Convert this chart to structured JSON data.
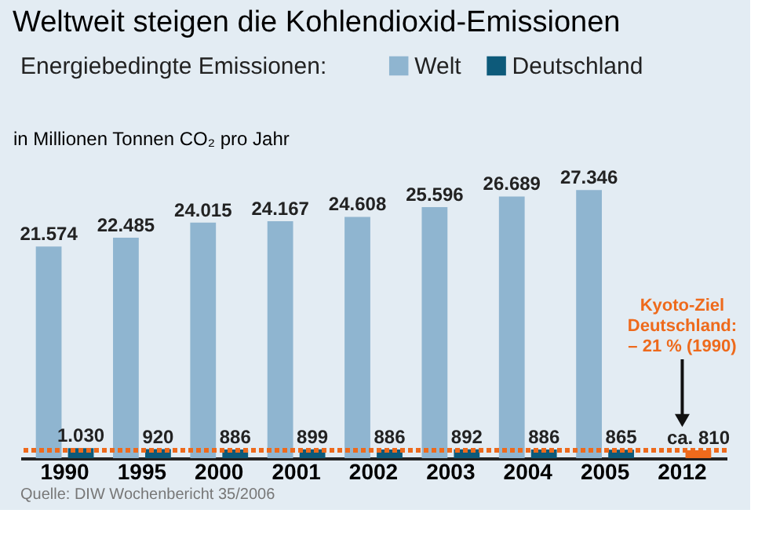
{
  "chart_data": {
    "type": "bar",
    "title": "Weltweit steigen die Kohlendioxid-Emissionen",
    "subtitle": "Energiebedingte Emissionen:",
    "ylabel": "in Millionen Tonnen CO₂ pro Jahr",
    "categories": [
      "1990",
      "1995",
      "2000",
      "2001",
      "2002",
      "2003",
      "2004",
      "2005",
      "2012"
    ],
    "series": [
      {
        "name": "Welt",
        "color": "#8fb5d0",
        "values": [
          21574,
          22485,
          24015,
          24167,
          24608,
          25596,
          26689,
          27346,
          null
        ],
        "value_labels": [
          "21.574",
          "22.485",
          "24.015",
          "24.167",
          "24.608",
          "25.596",
          "26.689",
          "27.346",
          null
        ]
      },
      {
        "name": "Deutschland",
        "color": "#0d5a7a",
        "colors": [
          "#0d5a7a",
          "#0d5a7a",
          "#0d5a7a",
          "#0d5a7a",
          "#0d5a7a",
          "#0d5a7a",
          "#0d5a7a",
          "#0d5a7a",
          "#ee6a1c"
        ],
        "values": [
          1030,
          920,
          886,
          899,
          886,
          892,
          886,
          865,
          810
        ],
        "value_labels": [
          "1.030",
          "920",
          "886",
          "899",
          "886",
          "892",
          "886",
          "865",
          "ca. 810"
        ]
      }
    ],
    "ref_lines": [
      {
        "axis": "y",
        "value": 810,
        "color": "#ee6a1c",
        "line_style": "dotted"
      }
    ],
    "annotations": [
      "Kyoto-Ziel Deutschland: – 21 % (1990)",
      "Quelle: DIW Wochenbericht 35/2006"
    ],
    "legend": "top",
    "grid": false,
    "tick_labels": "x"
  }
}
